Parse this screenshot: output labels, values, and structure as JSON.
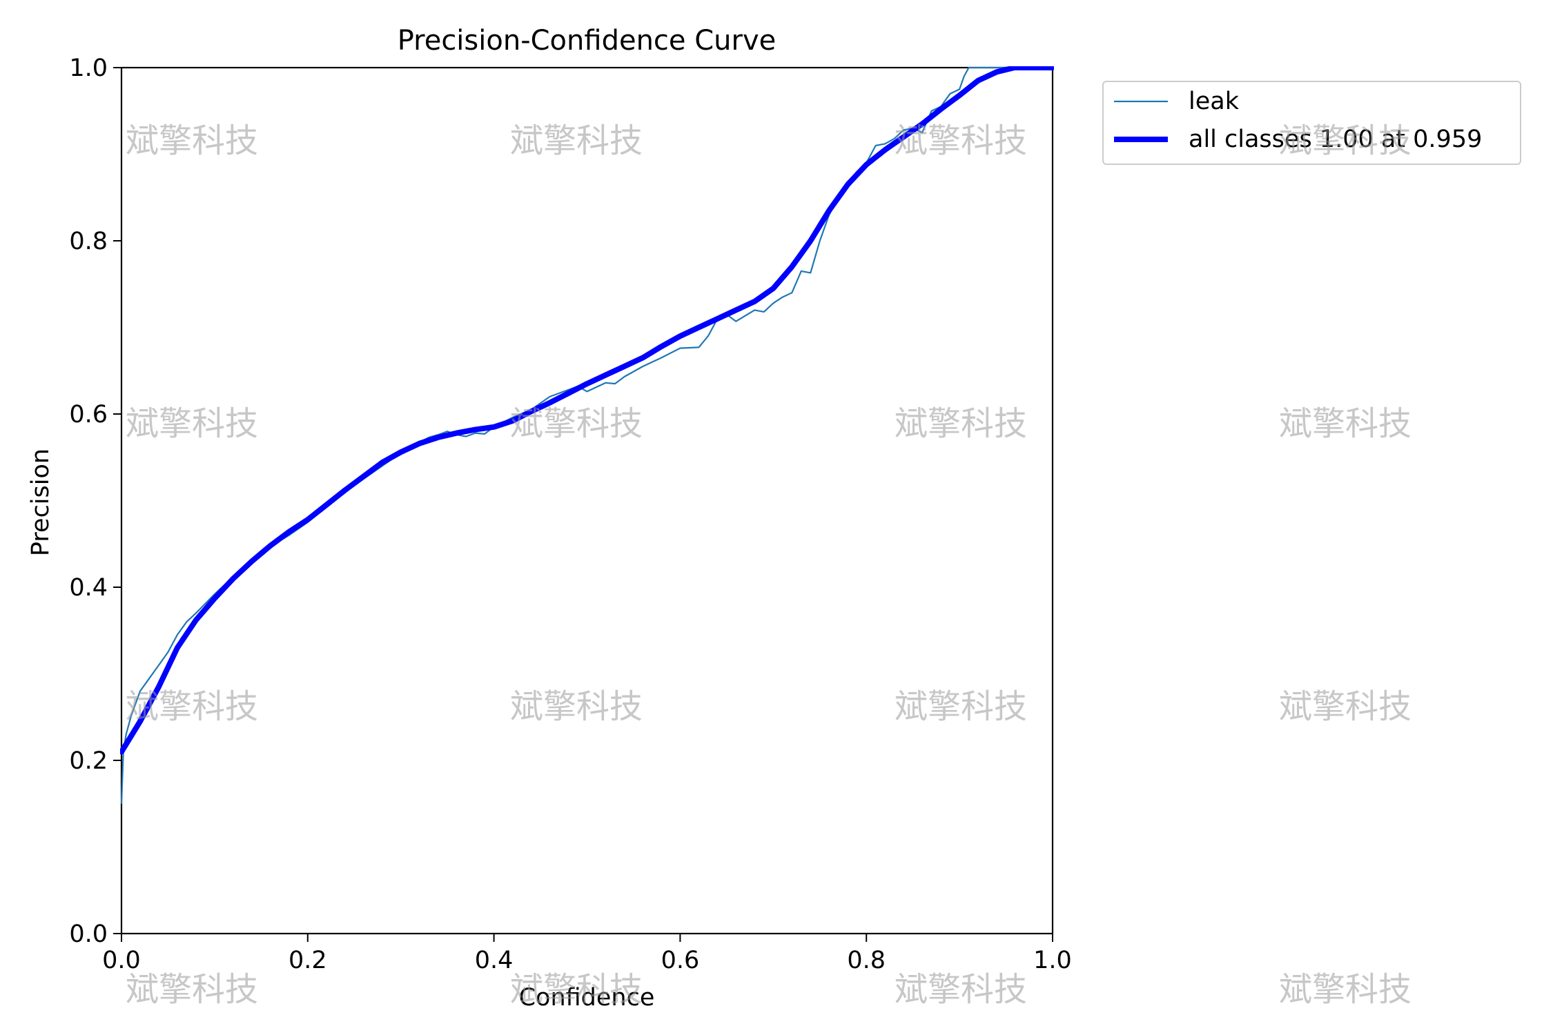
{
  "chart_data": {
    "type": "line",
    "title": "Precision-Confidence Curve",
    "xlabel": "Confidence",
    "ylabel": "Precision",
    "xlim": [
      0.0,
      1.0
    ],
    "ylim": [
      0.0,
      1.0
    ],
    "xticks": [
      "0.0",
      "0.2",
      "0.4",
      "0.6",
      "0.8",
      "1.0"
    ],
    "yticks": [
      "0.0",
      "0.2",
      "0.4",
      "0.6",
      "0.8",
      "1.0"
    ],
    "grid": false,
    "legend": "outside-top-right",
    "series": [
      {
        "name": "leak",
        "color": "#1f77b4",
        "x": [
          0.0,
          0.002,
          0.005,
          0.01,
          0.015,
          0.02,
          0.03,
          0.04,
          0.05,
          0.06,
          0.07,
          0.08,
          0.1,
          0.12,
          0.14,
          0.16,
          0.18,
          0.2,
          0.22,
          0.24,
          0.26,
          0.28,
          0.3,
          0.32,
          0.33,
          0.34,
          0.35,
          0.36,
          0.37,
          0.38,
          0.39,
          0.4,
          0.42,
          0.44,
          0.46,
          0.48,
          0.49,
          0.5,
          0.52,
          0.53,
          0.54,
          0.56,
          0.58,
          0.6,
          0.62,
          0.63,
          0.64,
          0.65,
          0.66,
          0.68,
          0.69,
          0.7,
          0.71,
          0.72,
          0.73,
          0.74,
          0.75,
          0.76,
          0.77,
          0.78,
          0.79,
          0.8,
          0.81,
          0.82,
          0.83,
          0.84,
          0.85,
          0.86,
          0.87,
          0.88,
          0.89,
          0.9,
          0.905,
          0.91,
          0.95,
          1.0
        ],
        "y": [
          0.15,
          0.21,
          0.23,
          0.25,
          0.265,
          0.28,
          0.295,
          0.31,
          0.325,
          0.345,
          0.36,
          0.37,
          0.392,
          0.412,
          0.43,
          0.447,
          0.46,
          0.475,
          0.493,
          0.51,
          0.525,
          0.54,
          0.555,
          0.567,
          0.573,
          0.576,
          0.58,
          0.576,
          0.574,
          0.578,
          0.577,
          0.585,
          0.596,
          0.605,
          0.62,
          0.628,
          0.632,
          0.626,
          0.636,
          0.635,
          0.643,
          0.655,
          0.665,
          0.676,
          0.677,
          0.69,
          0.71,
          0.715,
          0.707,
          0.72,
          0.718,
          0.728,
          0.735,
          0.74,
          0.765,
          0.763,
          0.8,
          0.83,
          0.85,
          0.868,
          0.88,
          0.89,
          0.91,
          0.912,
          0.918,
          0.928,
          0.93,
          0.925,
          0.95,
          0.955,
          0.97,
          0.975,
          0.99,
          1.0,
          1.0,
          1.0
        ]
      },
      {
        "name": "all classes 1.00 at 0.959",
        "color": "#0000ff",
        "x": [
          0.0,
          0.02,
          0.04,
          0.06,
          0.08,
          0.1,
          0.12,
          0.14,
          0.16,
          0.18,
          0.2,
          0.22,
          0.24,
          0.26,
          0.28,
          0.3,
          0.32,
          0.34,
          0.36,
          0.38,
          0.4,
          0.42,
          0.44,
          0.46,
          0.48,
          0.5,
          0.52,
          0.54,
          0.56,
          0.58,
          0.6,
          0.62,
          0.64,
          0.66,
          0.68,
          0.7,
          0.72,
          0.74,
          0.76,
          0.78,
          0.8,
          0.82,
          0.84,
          0.86,
          0.88,
          0.9,
          0.92,
          0.94,
          0.959,
          0.98,
          1.0
        ],
        "y": [
          0.21,
          0.245,
          0.285,
          0.33,
          0.362,
          0.387,
          0.41,
          0.43,
          0.448,
          0.464,
          0.478,
          0.495,
          0.512,
          0.528,
          0.544,
          0.556,
          0.566,
          0.573,
          0.578,
          0.582,
          0.585,
          0.592,
          0.603,
          0.613,
          0.624,
          0.635,
          0.645,
          0.655,
          0.665,
          0.678,
          0.69,
          0.7,
          0.71,
          0.72,
          0.73,
          0.745,
          0.77,
          0.8,
          0.835,
          0.865,
          0.888,
          0.905,
          0.92,
          0.935,
          0.952,
          0.968,
          0.985,
          0.995,
          1.0,
          1.0,
          1.0
        ]
      }
    ],
    "watermark": "斌擎科技"
  }
}
